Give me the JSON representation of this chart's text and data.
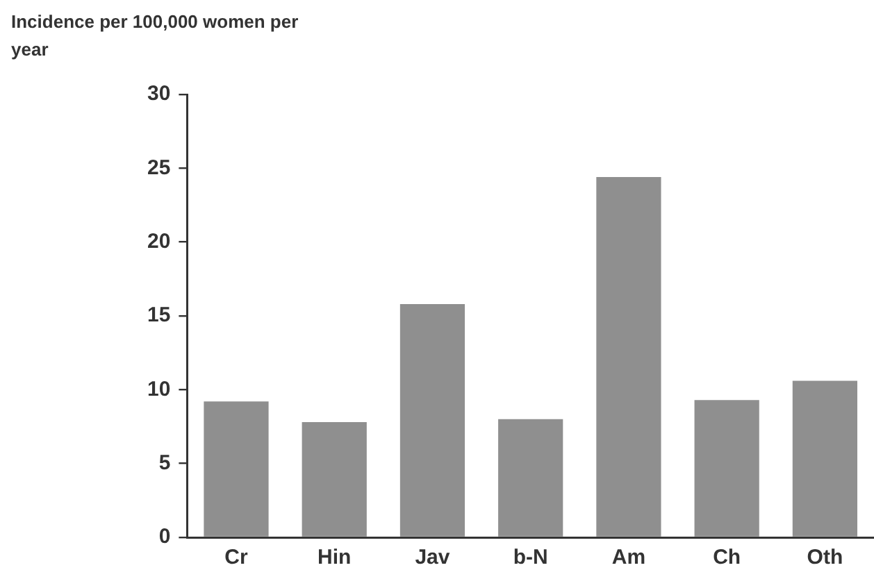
{
  "chart_data": {
    "type": "bar",
    "ylabel": "Incidence per 100,000 women per year",
    "categories": [
      "Cr",
      "Hin",
      "Jav",
      "b-N",
      "Am",
      "Ch",
      "Oth"
    ],
    "values": [
      9.2,
      7.8,
      15.8,
      8.0,
      24.4,
      9.3,
      10.6
    ],
    "color": "#8f8f8f",
    "ylim": [
      0,
      30
    ],
    "yticks": [
      0,
      5,
      10,
      15,
      20,
      25,
      30
    ],
    "grid": false,
    "legend": false
  }
}
